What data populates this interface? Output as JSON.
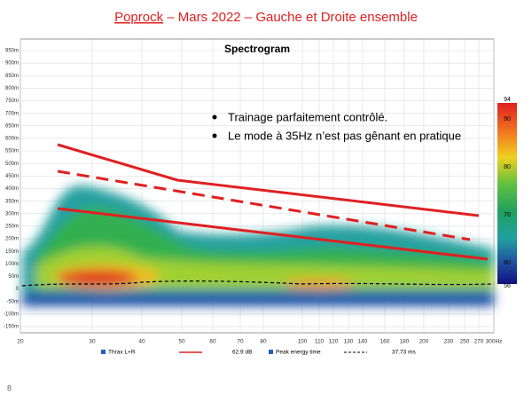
{
  "header": {
    "title_link": "Poprock",
    "title_rest": " – Mars 2022 – Gauche et Droite ensemble"
  },
  "plot": {
    "title": "Spectrogram",
    "y_labels": [
      "950m",
      "900m",
      "850m",
      "800m",
      "750m",
      "700m",
      "650m",
      "600m",
      "550m",
      "500m",
      "450m",
      "400m",
      "350m",
      "300m",
      "250m",
      "200m",
      "150m",
      "100m",
      "50m",
      "0",
      "-50m",
      "-100m",
      "-150m"
    ],
    "x_labels": [
      "20",
      "30",
      "40",
      "50",
      "60",
      "70",
      "80",
      "100",
      "110",
      "120",
      "130",
      "140",
      "160",
      "180",
      "200",
      "230",
      "250",
      "270",
      "300Hz"
    ],
    "colorbar_labels": [
      "94",
      "90",
      "80",
      "70",
      "60",
      "56"
    ],
    "legend": [
      "Thrax L+R",
      "62.9 dB",
      "Peak energy time",
      "37.73 ms"
    ]
  },
  "bullets": [
    "Trainage parfaitement contrôlé.",
    "Le mode à 35Hz n’est pas gênant en pratique"
  ],
  "footer": {
    "page": "8"
  }
}
